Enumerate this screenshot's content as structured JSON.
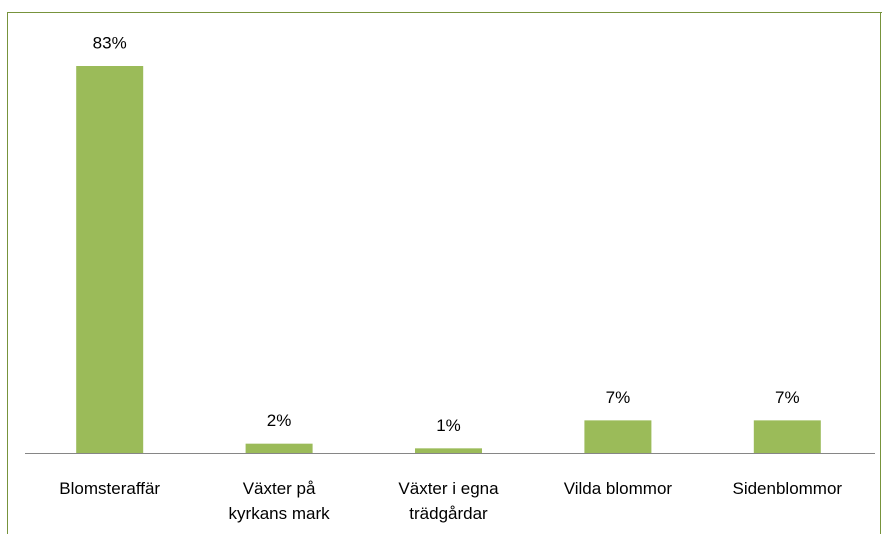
{
  "chart_data": {
    "type": "bar",
    "categories": [
      "Blomsteraffär",
      "Växter på\nkyrkans mark",
      "Växter i egna\nträdgårdar",
      "Vilda blommor",
      "Sidenblommor"
    ],
    "values": [
      83,
      2,
      1,
      7,
      7
    ],
    "value_labels": [
      "83%",
      "2%",
      "1%",
      "7%",
      "7%"
    ],
    "color": "#9bbb59"
  }
}
